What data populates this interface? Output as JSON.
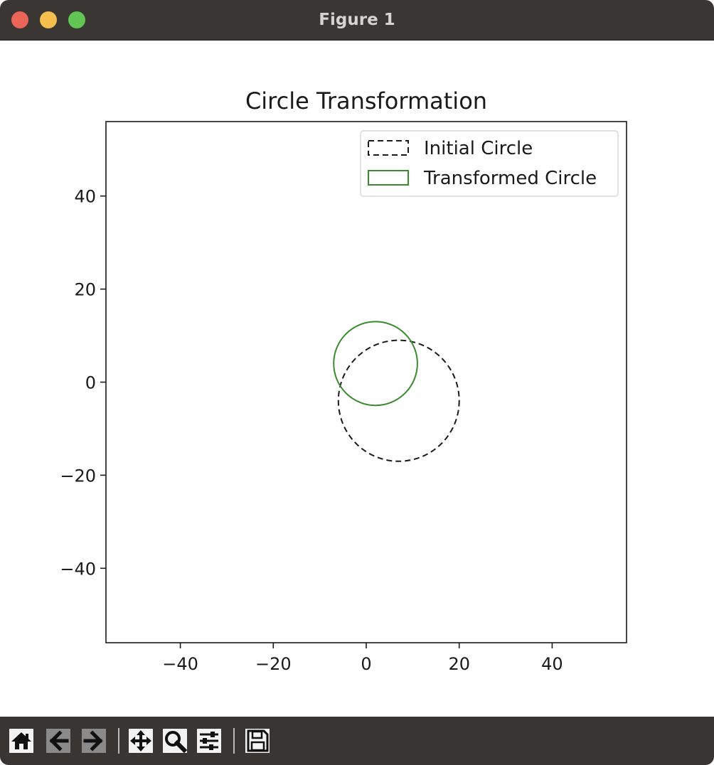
{
  "window": {
    "title": "Figure 1"
  },
  "toolbar": {
    "buttons": [
      {
        "name": "home-button",
        "icon": "home-icon"
      },
      {
        "name": "back-button",
        "icon": "arrow-left-icon"
      },
      {
        "name": "forward-button",
        "icon": "arrow-right-icon"
      },
      {
        "name": "pan-button",
        "icon": "move-icon"
      },
      {
        "name": "zoom-button",
        "icon": "magnifier-icon"
      },
      {
        "name": "configure-subplots-button",
        "icon": "sliders-icon"
      },
      {
        "name": "save-button",
        "icon": "floppy-disk-icon"
      }
    ]
  },
  "chart_data": {
    "type": "scatter",
    "title": "Circle Transformation",
    "xlabel": "",
    "ylabel": "",
    "xlim": [
      -56,
      56
    ],
    "ylim": [
      -56,
      56
    ],
    "xticks": [
      -40,
      -20,
      0,
      20,
      40
    ],
    "yticks": [
      -40,
      -20,
      0,
      20,
      40
    ],
    "xtick_labels": [
      "−40",
      "−20",
      "0",
      "20",
      "40"
    ],
    "ytick_labels": [
      "−40",
      "−20",
      "0",
      "20",
      "40"
    ],
    "grid": false,
    "legend_position": "top-right",
    "series": [
      {
        "name": "Initial Circle",
        "shape": "circle",
        "center": [
          7,
          -4
        ],
        "radius": 13,
        "line_style": "dashed",
        "color": "#1a1a1a"
      },
      {
        "name": "Transformed Circle",
        "shape": "circle",
        "center": [
          2,
          4
        ],
        "radius": 9,
        "line_style": "solid",
        "color": "#3a8a2e"
      }
    ]
  }
}
